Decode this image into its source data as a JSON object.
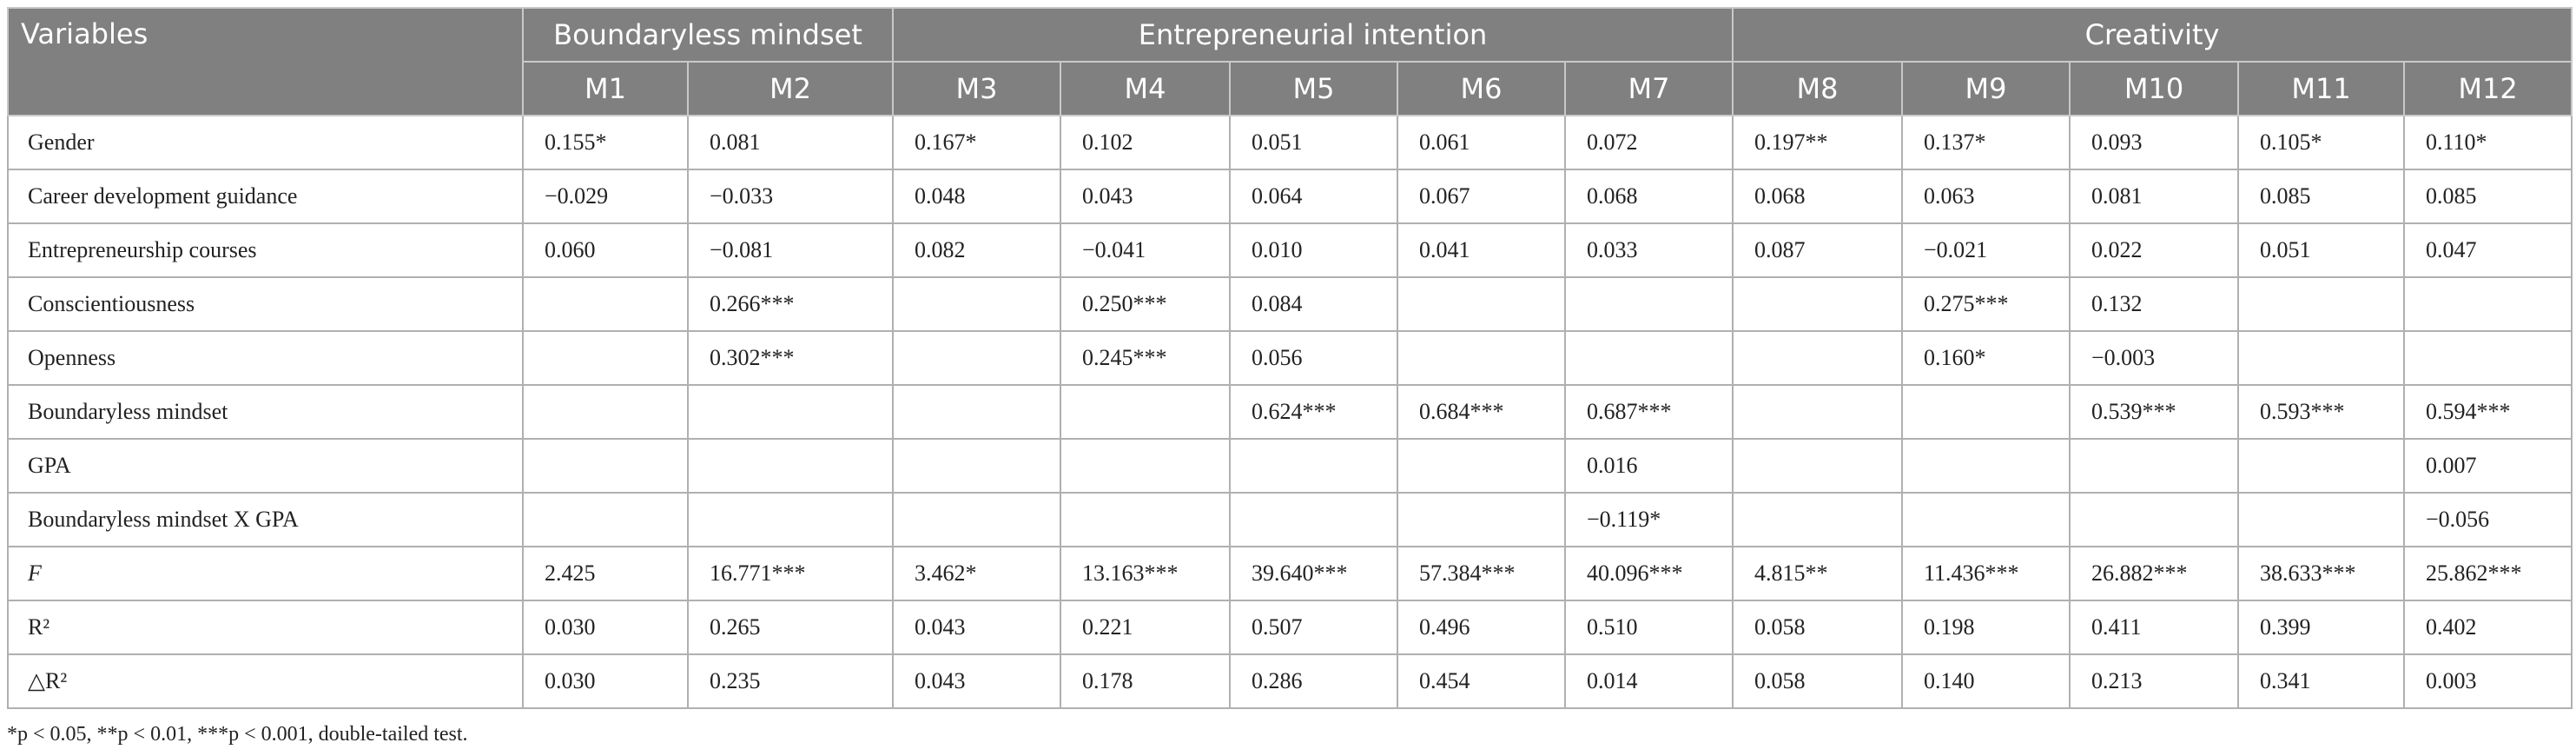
{
  "table": {
    "header_groups": [
      "Variables",
      "Boundaryless mindset",
      "Entrepreneurial intention",
      "Creativity"
    ],
    "models": [
      "M1",
      "M2",
      "M3",
      "M4",
      "M5",
      "M6",
      "M7",
      "M8",
      "M9",
      "M10",
      "M11",
      "M12"
    ],
    "rows": [
      {
        "label": "Gender",
        "values": [
          "0.155*",
          "0.081",
          "0.167*",
          "0.102",
          "0.051",
          "0.061",
          "0.072",
          "0.197**",
          "0.137*",
          "0.093",
          "0.105*",
          "0.110*"
        ]
      },
      {
        "label": "Career development guidance",
        "values": [
          "−0.029",
          "−0.033",
          "0.048",
          "0.043",
          "0.064",
          "0.067",
          "0.068",
          "0.068",
          "0.063",
          "0.081",
          "0.085",
          "0.085"
        ]
      },
      {
        "label": "Entrepreneurship courses",
        "values": [
          "0.060",
          "−0.081",
          "0.082",
          "−0.041",
          "0.010",
          "0.041",
          "0.033",
          "0.087",
          "−0.021",
          "0.022",
          "0.051",
          "0.047"
        ]
      },
      {
        "label": "Conscientiousness",
        "values": [
          null,
          "0.266***",
          null,
          "0.250***",
          "0.084",
          null,
          null,
          null,
          "0.275***",
          "0.132",
          null,
          null
        ]
      },
      {
        "label": "Openness",
        "values": [
          null,
          "0.302***",
          null,
          "0.245***",
          "0.056",
          null,
          null,
          null,
          "0.160*",
          "−0.003",
          null,
          null
        ]
      },
      {
        "label": "Boundaryless mindset",
        "values": [
          null,
          null,
          null,
          null,
          "0.624***",
          "0.684***",
          "0.687***",
          null,
          null,
          "0.539***",
          "0.593***",
          "0.594***"
        ]
      },
      {
        "label": "GPA",
        "values": [
          null,
          null,
          null,
          null,
          null,
          null,
          "0.016",
          null,
          null,
          null,
          null,
          "0.007"
        ]
      },
      {
        "label": "Boundaryless mindset X GPA",
        "values": [
          null,
          null,
          null,
          null,
          null,
          null,
          "−0.119*",
          null,
          null,
          null,
          null,
          "−0.056"
        ]
      },
      {
        "label": "F",
        "values": [
          "2.425",
          "16.771***",
          "3.462*",
          "13.163***",
          "39.640***",
          "57.384***",
          "40.096***",
          "4.815**",
          "11.436***",
          "26.882***",
          "38.633***",
          "25.862***"
        ]
      },
      {
        "label": "R²",
        "values": [
          "0.030",
          "0.265",
          "0.043",
          "0.221",
          "0.507",
          "0.496",
          "0.510",
          "0.058",
          "0.198",
          "0.411",
          "0.399",
          "0.402"
        ]
      },
      {
        "label": "△R²",
        "values": [
          "0.030",
          "0.235",
          "0.043",
          "0.178",
          "0.286",
          "0.454",
          "0.014",
          "0.058",
          "0.140",
          "0.213",
          "0.341",
          "0.003"
        ]
      }
    ],
    "footnote": "*p < 0.05, **p < 0.01, ***p < 0.001, double-tailed test."
  }
}
